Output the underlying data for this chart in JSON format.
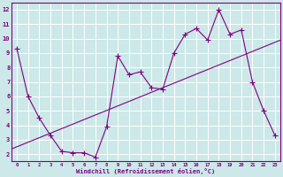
{
  "x": [
    0,
    1,
    2,
    3,
    4,
    5,
    6,
    7,
    8,
    9,
    10,
    11,
    12,
    13,
    14,
    15,
    16,
    17,
    18,
    19,
    20,
    21,
    22,
    23
  ],
  "y_main": [
    9.3,
    6.0,
    4.5,
    3.3,
    2.2,
    2.1,
    2.1,
    1.8,
    3.9,
    8.8,
    7.5,
    7.7,
    6.6,
    6.5,
    9.0,
    10.3,
    10.7,
    9.9,
    12.0,
    10.3,
    10.6,
    7.0,
    5.0,
    3.3
  ],
  "y_trend_start": 3.3,
  "y_trend_end": 9.9,
  "line_color": "#800080",
  "trend_color": "#800080",
  "bg_color": "#cce8e8",
  "grid_color": "#ffffff",
  "xlabel": "Windchill (Refroidissement éolien,°C)",
  "ylim": [
    1.5,
    12.5
  ],
  "xlim": [
    -0.5,
    23.5
  ],
  "yticks": [
    2,
    3,
    4,
    5,
    6,
    7,
    8,
    9,
    10,
    11,
    12
  ],
  "xticks": [
    0,
    1,
    2,
    3,
    4,
    5,
    6,
    7,
    8,
    9,
    10,
    11,
    12,
    13,
    14,
    15,
    16,
    17,
    18,
    19,
    20,
    21,
    22,
    23
  ]
}
